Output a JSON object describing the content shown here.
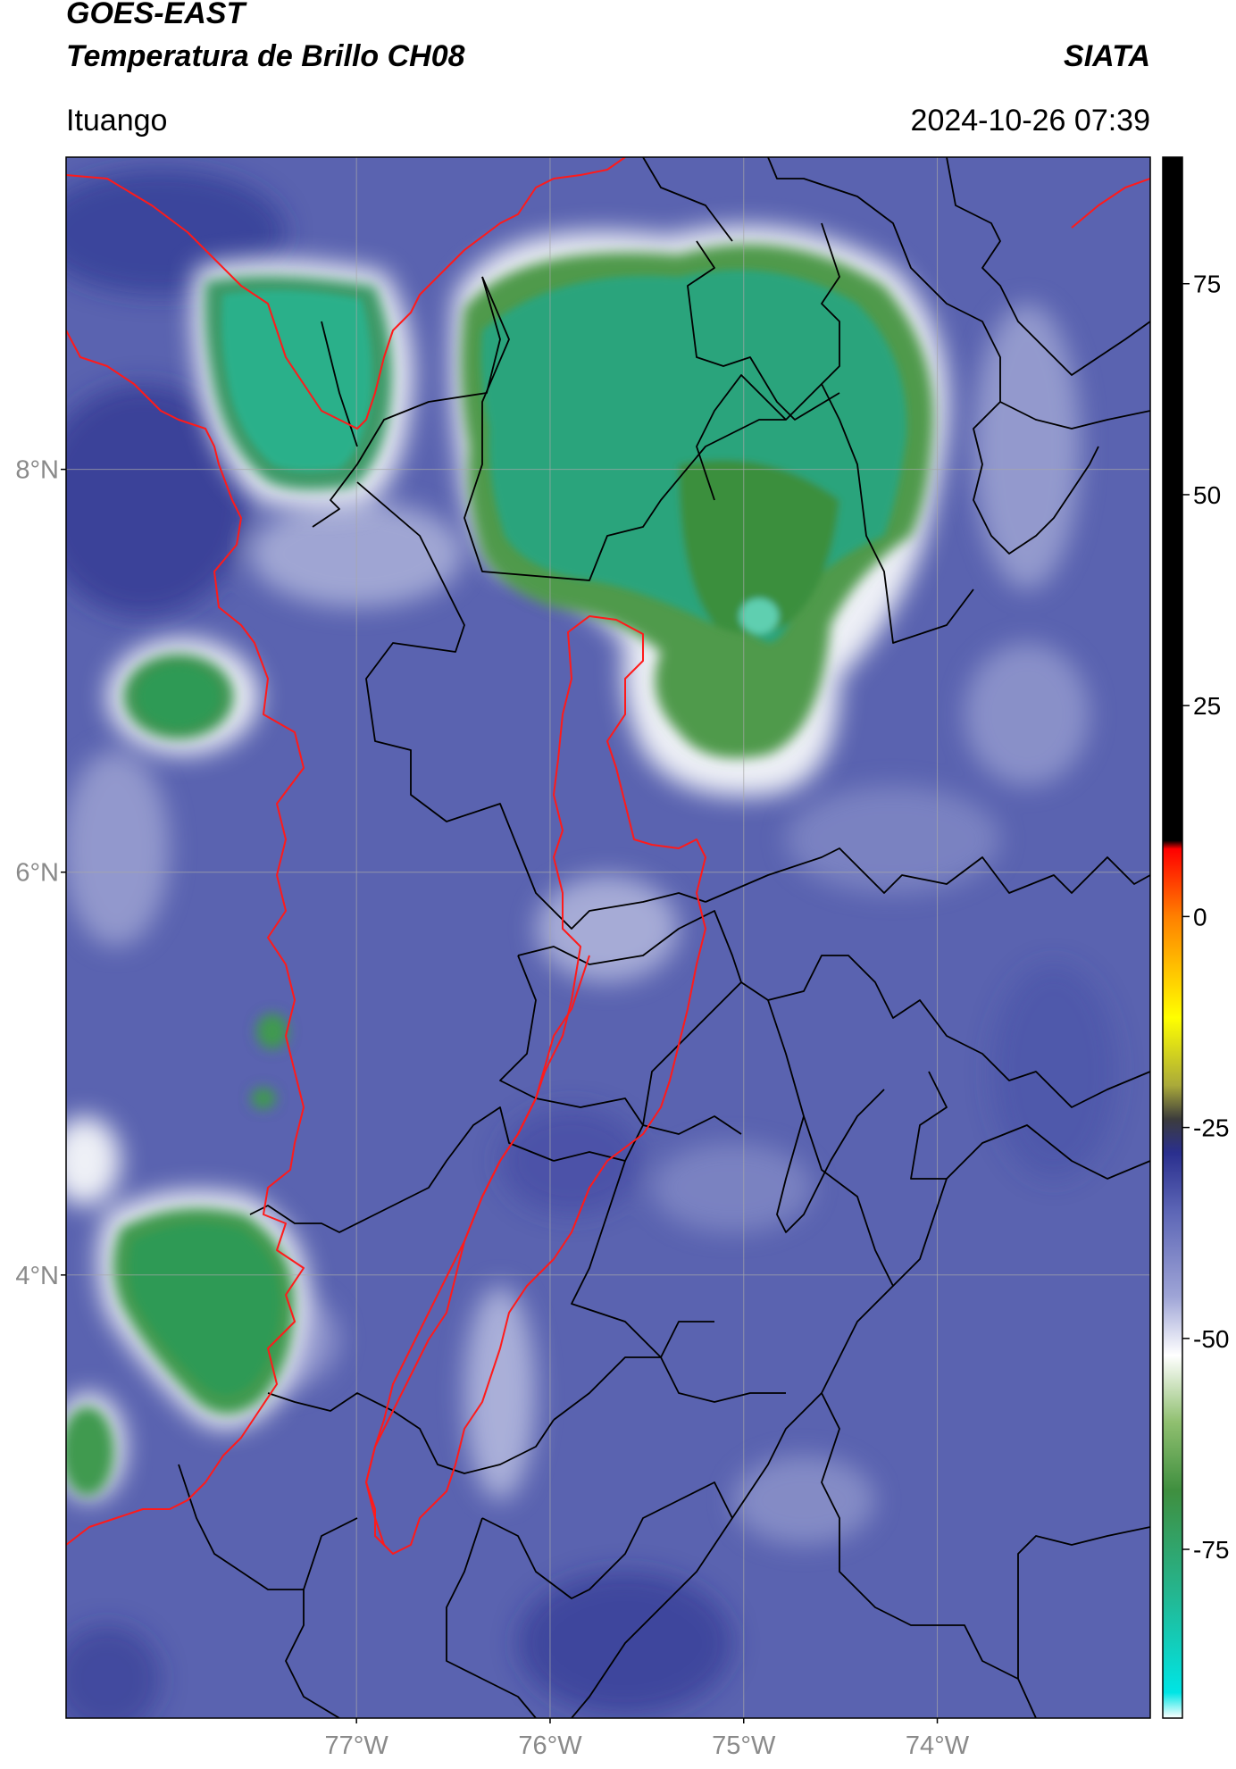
{
  "header": {
    "satellite": "GOES-EAST",
    "product": "Temperatura de Brillo CH08",
    "organization": "SIATA",
    "location": "Ituango",
    "timestamp": "2024-10-26 07:39"
  },
  "map": {
    "lon_range": [
      -78.5,
      -72.9
    ],
    "lat_range": [
      1.8,
      9.55
    ],
    "lat_ticks": [
      {
        "value": 8,
        "label": "8°N"
      },
      {
        "value": 6,
        "label": "6°N"
      },
      {
        "value": 4,
        "label": "4°N"
      }
    ],
    "lon_ticks": [
      {
        "value": -77,
        "label": "77°W"
      },
      {
        "value": -76,
        "label": "76°W"
      },
      {
        "value": -75,
        "label": "75°W"
      },
      {
        "value": -74,
        "label": "74°W"
      }
    ],
    "colors": {
      "background": "#5a63b0",
      "cold_cloud_top": "#2fa37a",
      "cloud_core": "#3f9a3e",
      "cloud_edge": "#e8ecef",
      "department_borders": "#000000",
      "highlight_borders": "#ff0000",
      "coastline": "#ff0000",
      "gridlines": "#a8a8a8"
    }
  },
  "colorbar": {
    "range": [
      -95,
      90
    ],
    "ticks": [
      {
        "value": 75,
        "label": "75"
      },
      {
        "value": 50,
        "label": "50"
      },
      {
        "value": 25,
        "label": "25"
      },
      {
        "value": 0,
        "label": "0"
      },
      {
        "value": -25,
        "label": "-25"
      },
      {
        "value": -50,
        "label": "-50"
      },
      {
        "value": -75,
        "label": "-75"
      }
    ],
    "stops": [
      {
        "value": -95,
        "color": "#ffffff"
      },
      {
        "value": -92,
        "color": "#00e5e5"
      },
      {
        "value": -80,
        "color": "#25b58e"
      },
      {
        "value": -68,
        "color": "#3f8f3f"
      },
      {
        "value": -60,
        "color": "#8fbf6f"
      },
      {
        "value": -52,
        "color": "#ffffff"
      },
      {
        "value": -45,
        "color": "#9ea4d6"
      },
      {
        "value": -35,
        "color": "#5d66b6"
      },
      {
        "value": -28,
        "color": "#2a2f8e"
      },
      {
        "value": -24,
        "color": "#3c3c3c"
      },
      {
        "value": -20,
        "color": "#aaaa3a"
      },
      {
        "value": -12,
        "color": "#ffff00"
      },
      {
        "value": 0,
        "color": "#ff8000"
      },
      {
        "value": 8,
        "color": "#ff0000"
      },
      {
        "value": 9,
        "color": "#000000"
      },
      {
        "value": 90,
        "color": "#000000"
      }
    ]
  }
}
